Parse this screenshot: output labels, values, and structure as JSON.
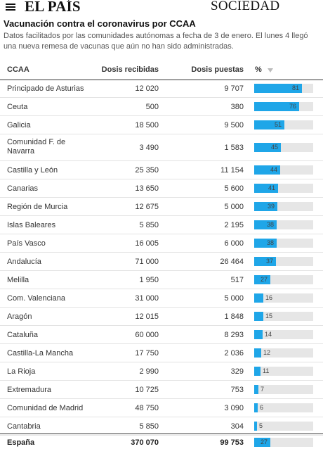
{
  "header": {
    "logo": "EL PAÍS",
    "section": "SOCIEDAD"
  },
  "title": "Vacunación contra el coronavirus por CCAA",
  "subtitle": "Datos facilitados por las comunidades autónomas a fecha de 3 de enero. El lunes 4 llegó una nueva remesa de vacunas que aún no han sido administradas.",
  "columns": {
    "ccaa": "CCAA",
    "recibidas": "Dosis recibidas",
    "puestas": "Dosis puestas",
    "pct": "%"
  },
  "colors": {
    "bar": "#1fa6e8",
    "track": "#e6e6e6"
  },
  "rows": [
    {
      "name": "Principado de Asturias",
      "recibidas": "12 020",
      "puestas": "9 707",
      "pct": 81
    },
    {
      "name": "Ceuta",
      "recibidas": "500",
      "puestas": "380",
      "pct": 76
    },
    {
      "name": "Galicia",
      "recibidas": "18 500",
      "puestas": "9 500",
      "pct": 51
    },
    {
      "name": "Comunidad F. de Navarra",
      "recibidas": "3 490",
      "puestas": "1 583",
      "pct": 45
    },
    {
      "name": "Castilla y León",
      "recibidas": "25 350",
      "puestas": "11 154",
      "pct": 44
    },
    {
      "name": "Canarias",
      "recibidas": "13 650",
      "puestas": "5 600",
      "pct": 41
    },
    {
      "name": "Región de Murcia",
      "recibidas": "12 675",
      "puestas": "5 000",
      "pct": 39
    },
    {
      "name": "Islas Baleares",
      "recibidas": "5 850",
      "puestas": "2 195",
      "pct": 38
    },
    {
      "name": "País Vasco",
      "recibidas": "16 005",
      "puestas": "6 000",
      "pct": 38
    },
    {
      "name": "Andalucía",
      "recibidas": "71 000",
      "puestas": "26 464",
      "pct": 37
    },
    {
      "name": "Melilla",
      "recibidas": "1 950",
      "puestas": "517",
      "pct": 27
    },
    {
      "name": "Com. Valenciana",
      "recibidas": "31 000",
      "puestas": "5 000",
      "pct": 16
    },
    {
      "name": "Aragón",
      "recibidas": "12 015",
      "puestas": "1 848",
      "pct": 15
    },
    {
      "name": "Cataluña",
      "recibidas": "60 000",
      "puestas": "8 293",
      "pct": 14
    },
    {
      "name": "Castilla-La Mancha",
      "recibidas": "17 750",
      "puestas": "2 036",
      "pct": 12
    },
    {
      "name": "La Rioja",
      "recibidas": "2 990",
      "puestas": "329",
      "pct": 11
    },
    {
      "name": "Extremadura",
      "recibidas": "10 725",
      "puestas": "753",
      "pct": 7
    },
    {
      "name": "Comunidad de Madrid",
      "recibidas": "48 750",
      "puestas": "3 090",
      "pct": 6
    },
    {
      "name": "Cantabria",
      "recibidas": "5 850",
      "puestas": "304",
      "pct": 5
    }
  ],
  "total": {
    "name": "España",
    "recibidas": "370 070",
    "puestas": "99 753",
    "pct": 27
  }
}
